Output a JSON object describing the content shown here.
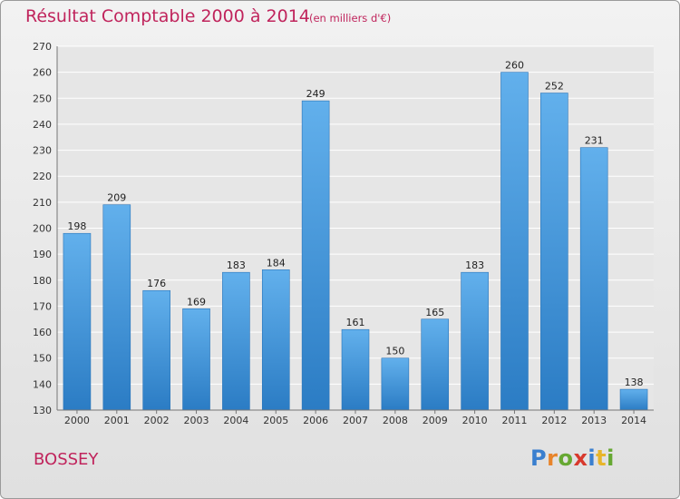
{
  "chart_data": {
    "type": "bar",
    "title": "Résultat Comptable 2000 à 2014",
    "subtitle": "(en milliers d'€)",
    "categories": [
      "2000",
      "2001",
      "2002",
      "2003",
      "2004",
      "2005",
      "2006",
      "2007",
      "2008",
      "2009",
      "2010",
      "2011",
      "2012",
      "2013",
      "2014"
    ],
    "values": [
      198,
      209,
      176,
      169,
      183,
      184,
      249,
      161,
      150,
      165,
      183,
      260,
      252,
      231,
      138
    ],
    "ylim": [
      130,
      270
    ],
    "yticks": [
      130,
      140,
      150,
      160,
      170,
      180,
      190,
      200,
      210,
      220,
      230,
      240,
      250,
      260,
      270
    ],
    "grid": true,
    "bar_color": "#3d8fd6"
  },
  "commune": "BOSSEY",
  "logo": {
    "letters": [
      "P",
      "r",
      "o",
      "x",
      "i",
      "t",
      "i"
    ],
    "colors": [
      "#3a7fcf",
      "#e8842a",
      "#66a832",
      "#d8392d",
      "#3a7fcf",
      "#e8b52a",
      "#66a832"
    ]
  }
}
